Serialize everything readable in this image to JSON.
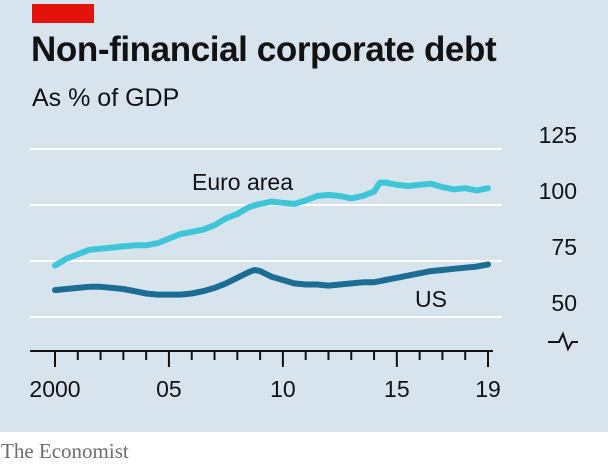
{
  "header": {
    "title": "Non-financial corporate debt",
    "subtitle": "As % of GDP"
  },
  "footer": {
    "credit": "The Economist"
  },
  "colors": {
    "background": "#d7e4ee",
    "accent_tag": "#e3120b",
    "euro_area": "#3ec6d8",
    "us": "#1c6c94",
    "gridline": "#ffffff",
    "axis": "#121212"
  },
  "chart_data": {
    "type": "line",
    "title": "Non-financial corporate debt",
    "subtitle": "As % of GDP",
    "xlabel": "",
    "ylabel": "",
    "xlim": [
      1999.5,
      2019.5
    ],
    "ylim": [
      50,
      125
    ],
    "y_axis_side": "right",
    "y_axis_break": true,
    "grid": "horizontal",
    "y_ticks": [
      125,
      100,
      75,
      50
    ],
    "x_tick_labels": [
      {
        "x": 2000,
        "label": "2000"
      },
      {
        "x": 2005,
        "label": "05"
      },
      {
        "x": 2010,
        "label": "10"
      },
      {
        "x": 2015,
        "label": "15"
      },
      {
        "x": 2019,
        "label": "19"
      }
    ],
    "series": [
      {
        "name": "Euro area",
        "x": [
          2000,
          2000.5,
          2001,
          2001.5,
          2002,
          2002.5,
          2003,
          2003.5,
          2004,
          2004.5,
          2005,
          2005.5,
          2006,
          2006.5,
          2007,
          2007.5,
          2008,
          2008.5,
          2009,
          2009.5,
          2010,
          2010.5,
          2011,
          2011.5,
          2012,
          2012.5,
          2013,
          2013.5,
          2014,
          2014.25,
          2014.5,
          2015,
          2015.5,
          2016,
          2016.5,
          2017,
          2017.5,
          2018,
          2018.5,
          2019
        ],
        "values": [
          73,
          76,
          78,
          80,
          80.5,
          81,
          81.5,
          82,
          82,
          83,
          85,
          87,
          88,
          89,
          91,
          94,
          96,
          99,
          100.5,
          101.5,
          101,
          100.5,
          102,
          104,
          104.5,
          104,
          103,
          104,
          106,
          110,
          110,
          109,
          108.5,
          109,
          109.5,
          108,
          107,
          107.5,
          106.5,
          107.5
        ]
      },
      {
        "name": "US",
        "x": [
          2000,
          2000.5,
          2001,
          2001.5,
          2002,
          2002.5,
          2003,
          2003.5,
          2004,
          2004.5,
          2005,
          2005.5,
          2006,
          2006.5,
          2007,
          2007.5,
          2008,
          2008.5,
          2008.75,
          2009,
          2009.5,
          2010,
          2010.5,
          2011,
          2011.5,
          2012,
          2012.5,
          2013,
          2013.5,
          2014,
          2014.5,
          2015,
          2015.5,
          2016,
          2016.5,
          2017,
          2017.5,
          2018,
          2018.5,
          2019
        ],
        "values": [
          62,
          62.5,
          63,
          63.5,
          63.5,
          63,
          62.5,
          61.5,
          60.5,
          60,
          60,
          60,
          60.5,
          61.5,
          63,
          65,
          67.5,
          70,
          71,
          70.5,
          68,
          66.5,
          65,
          64.5,
          64.5,
          64,
          64.5,
          65,
          65.5,
          65.5,
          66.5,
          67.5,
          68.5,
          69.5,
          70.5,
          71,
          71.5,
          72,
          72.5,
          73.5
        ]
      }
    ],
    "annotations": [
      {
        "text": "Euro area",
        "series": "Euro area"
      },
      {
        "text": "US",
        "series": "US"
      }
    ]
  }
}
